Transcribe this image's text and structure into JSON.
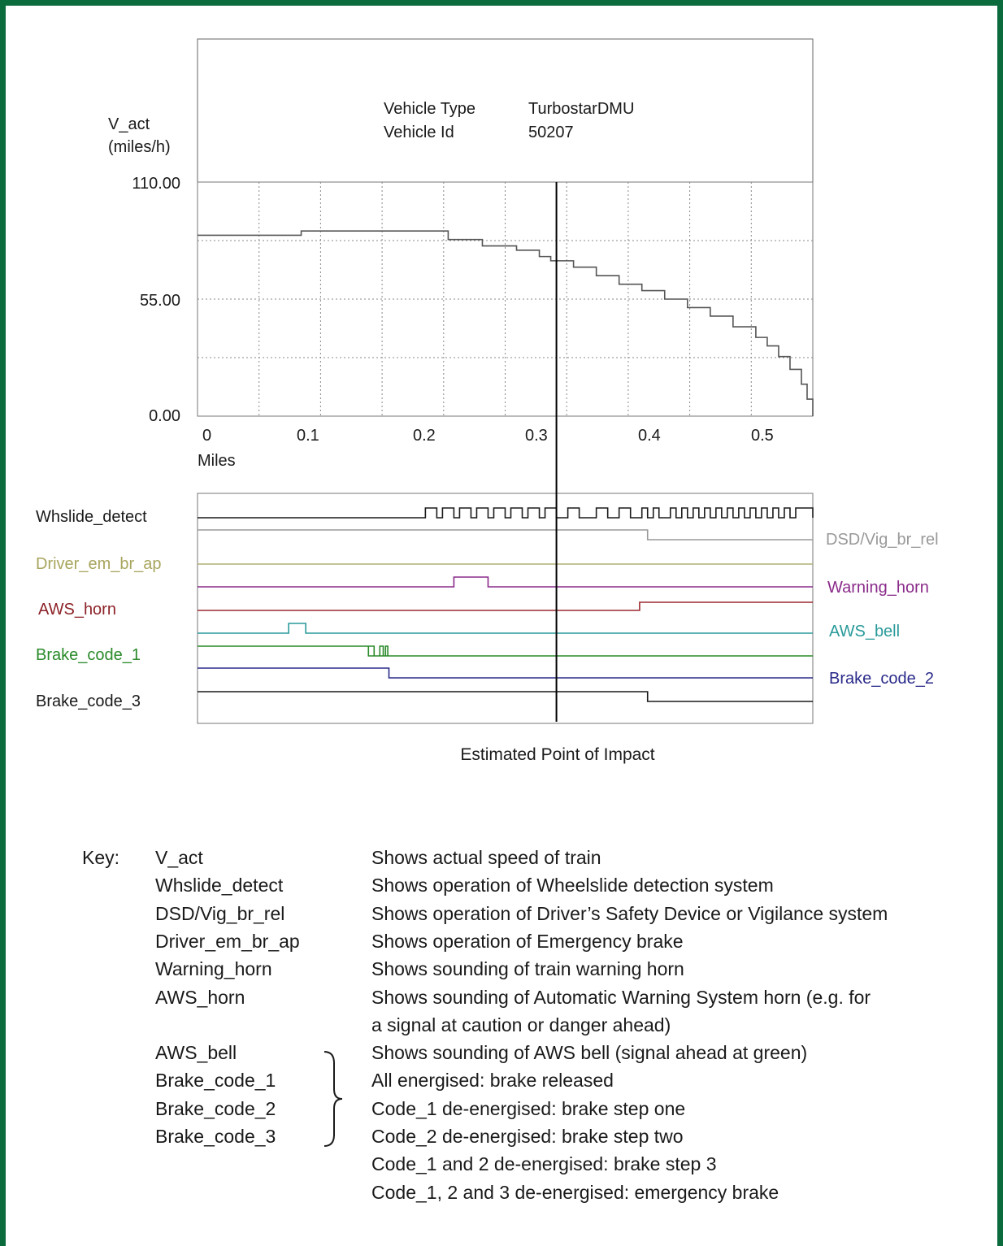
{
  "chart_data": [
    {
      "type": "line",
      "header": {
        "vehicle_type_label": "Vehicle Type",
        "vehicle_type_value": "TurbostarDMU",
        "vehicle_id_label": "Vehicle Id",
        "vehicle_id_value": "50207"
      },
      "ylabel": "V_act",
      "yunit": "(miles/h)",
      "xlabel": "Miles",
      "ylim": [
        0,
        110
      ],
      "xlim": [
        0,
        0.54
      ],
      "y_ticks": [
        "110.00",
        "55.00",
        "0.00"
      ],
      "x_ticks": [
        "0",
        "0.1",
        "0.2",
        "0.3",
        "0.4",
        "0.5"
      ],
      "grid": true,
      "series": [
        {
          "name": "V_act",
          "x": [
            0,
            0.09,
            0.091,
            0.21,
            0.22,
            0.25,
            0.28,
            0.3,
            0.31,
            0.33,
            0.35,
            0.37,
            0.39,
            0.41,
            0.43,
            0.45,
            0.47,
            0.49,
            0.5,
            0.51,
            0.52,
            0.53,
            0.535,
            0.54
          ],
          "y": [
            85,
            85,
            87,
            87,
            83,
            80,
            78,
            75,
            73,
            70,
            66,
            62,
            59,
            55,
            51,
            47,
            42,
            37,
            33,
            28,
            22,
            15,
            8,
            0
          ]
        }
      ],
      "impact_marker": {
        "x": 0.315,
        "label": "Estimated Point of Impact"
      }
    },
    {
      "type": "digital_traces",
      "xlim": [
        0,
        0.54
      ],
      "signals": [
        {
          "name": "Whslide_detect",
          "color": "#1a1a1a",
          "label_side": "left",
          "pulses": [
            [
              0.2,
              0.21
            ],
            [
              0.215,
              0.225
            ],
            [
              0.23,
              0.24
            ],
            [
              0.245,
              0.255
            ],
            [
              0.26,
              0.27
            ],
            [
              0.275,
              0.285
            ],
            [
              0.29,
              0.3
            ],
            [
              0.305,
              0.315
            ],
            [
              0.325,
              0.335
            ],
            [
              0.35,
              0.36
            ],
            [
              0.37,
              0.38
            ],
            [
              0.39,
              0.395
            ],
            [
              0.4,
              0.405
            ],
            [
              0.415,
              0.42
            ],
            [
              0.425,
              0.43
            ],
            [
              0.435,
              0.44
            ],
            [
              0.445,
              0.45
            ],
            [
              0.455,
              0.46
            ],
            [
              0.465,
              0.47
            ],
            [
              0.475,
              0.48
            ],
            [
              0.485,
              0.49
            ],
            [
              0.495,
              0.5
            ],
            [
              0.505,
              0.51
            ],
            [
              0.515,
              0.52
            ],
            [
              0.525,
              0.54
            ]
          ]
        },
        {
          "name": "DSD/Vig_br_rel",
          "color": "#999999",
          "label_side": "right",
          "high_until": 0.395
        },
        {
          "name": "Driver_em_br_ap",
          "color": "#b2b076",
          "label_side": "left",
          "constant": "low"
        },
        {
          "name": "Warning_horn",
          "color": "#8a2a8a",
          "label_side": "right",
          "pulses": [
            [
              0.225,
              0.255
            ]
          ]
        },
        {
          "name": "AWS_horn",
          "color": "#9c2a30",
          "label_side": "left",
          "high_from": 0.388
        },
        {
          "name": "AWS_bell",
          "color": "#2a9a9a",
          "label_side": "right",
          "pulses": [
            [
              0.08,
              0.095
            ]
          ]
        },
        {
          "name": "Brake_code_1",
          "color": "#2a8a2a",
          "label_side": "left",
          "high_until": 0.15,
          "pulses": [
            [
              0.15,
              0.155
            ],
            [
              0.16,
              0.163
            ],
            [
              0.165,
              0.167
            ]
          ]
        },
        {
          "name": "Brake_code_2",
          "color": "#2a2a8a",
          "label_side": "right",
          "high_until": 0.168
        },
        {
          "name": "Brake_code_3",
          "color": "#1a1a1a",
          "label_side": "left",
          "high_until": 0.395
        }
      ]
    }
  ],
  "key": {
    "title": "Key:",
    "rows": [
      {
        "term": "V_act",
        "desc": "Shows actual speed of train"
      },
      {
        "term": "Whslide_detect",
        "desc": "Shows operation of Wheelslide detection system"
      },
      {
        "term": "DSD/Vig_br_rel",
        "desc": "Shows operation of Driver’s Safety Device or Vigilance system"
      },
      {
        "term": "Driver_em_br_ap",
        "desc": "Shows operation of Emergency brake"
      },
      {
        "term": "Warning_horn",
        "desc": "Shows sounding of train warning horn"
      },
      {
        "term": "AWS_horn",
        "desc": "Shows sounding of Automatic Warning System horn (e.g. for"
      },
      {
        "term": "",
        "desc": "a signal at caution or danger ahead)"
      },
      {
        "term": "AWS_bell",
        "desc": "Shows sounding of AWS bell (signal ahead at green)"
      },
      {
        "term": "Brake_code_1",
        "desc": "All energised:  brake released"
      },
      {
        "term": "Brake_code_2",
        "desc": "Code_1 de-energised:  brake step one"
      },
      {
        "term": "Brake_code_3",
        "desc": "Code_2 de-energised:  brake step two"
      },
      {
        "term": "",
        "desc": "Code_1 and 2 de-energised:  brake step 3"
      },
      {
        "term": "",
        "desc": "Code_1, 2 and 3 de-energised:  emergency brake"
      }
    ]
  }
}
